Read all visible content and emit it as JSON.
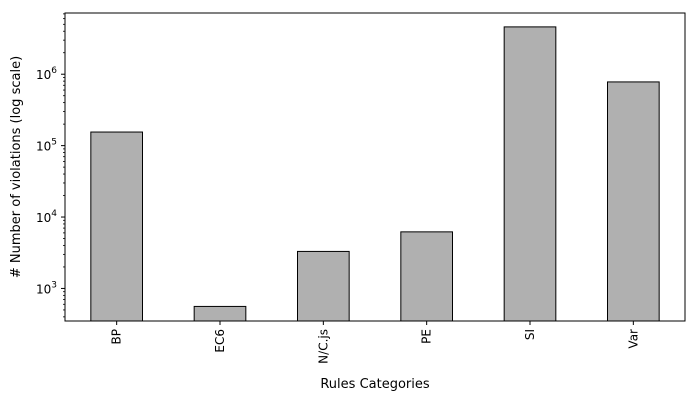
{
  "chart_data": {
    "type": "bar",
    "categories": [
      "BP",
      "EC6",
      "N/C.js",
      "PE",
      "SI",
      "Var"
    ],
    "values": [
      155000,
      560,
      3300,
      6200,
      4600000,
      780000
    ],
    "xlabel": "Rules Categories",
    "ylabel": "# Number of violations  (log scale)",
    "yscale": "log",
    "ylim": [
      350,
      7200000
    ],
    "yticks": [
      {
        "value": 1000,
        "base": "10",
        "exp": "3"
      },
      {
        "value": 10000,
        "base": "10",
        "exp": "4"
      },
      {
        "value": 100000,
        "base": "10",
        "exp": "5"
      },
      {
        "value": 1000000,
        "base": "10",
        "exp": "6"
      }
    ],
    "bar_color": "#b0b0b0",
    "edge_color": "#000000",
    "grid": false,
    "legend": "none"
  }
}
